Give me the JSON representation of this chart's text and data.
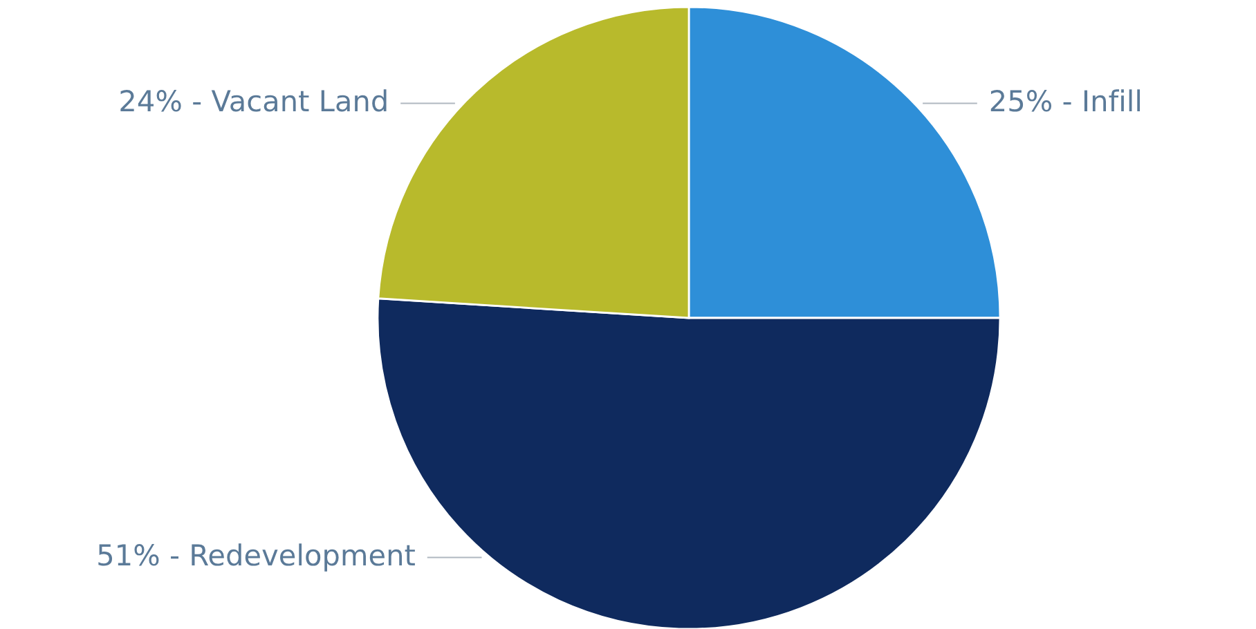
{
  "chart_data": {
    "type": "pie",
    "categories": [
      "25% - Infill",
      "51% - Redevelopment",
      "24% - Vacant Land"
    ],
    "values": [
      25,
      51,
      24
    ],
    "colors": [
      "#2e8fd8",
      "#0f2a5e",
      "#b8ba2c"
    ]
  }
}
